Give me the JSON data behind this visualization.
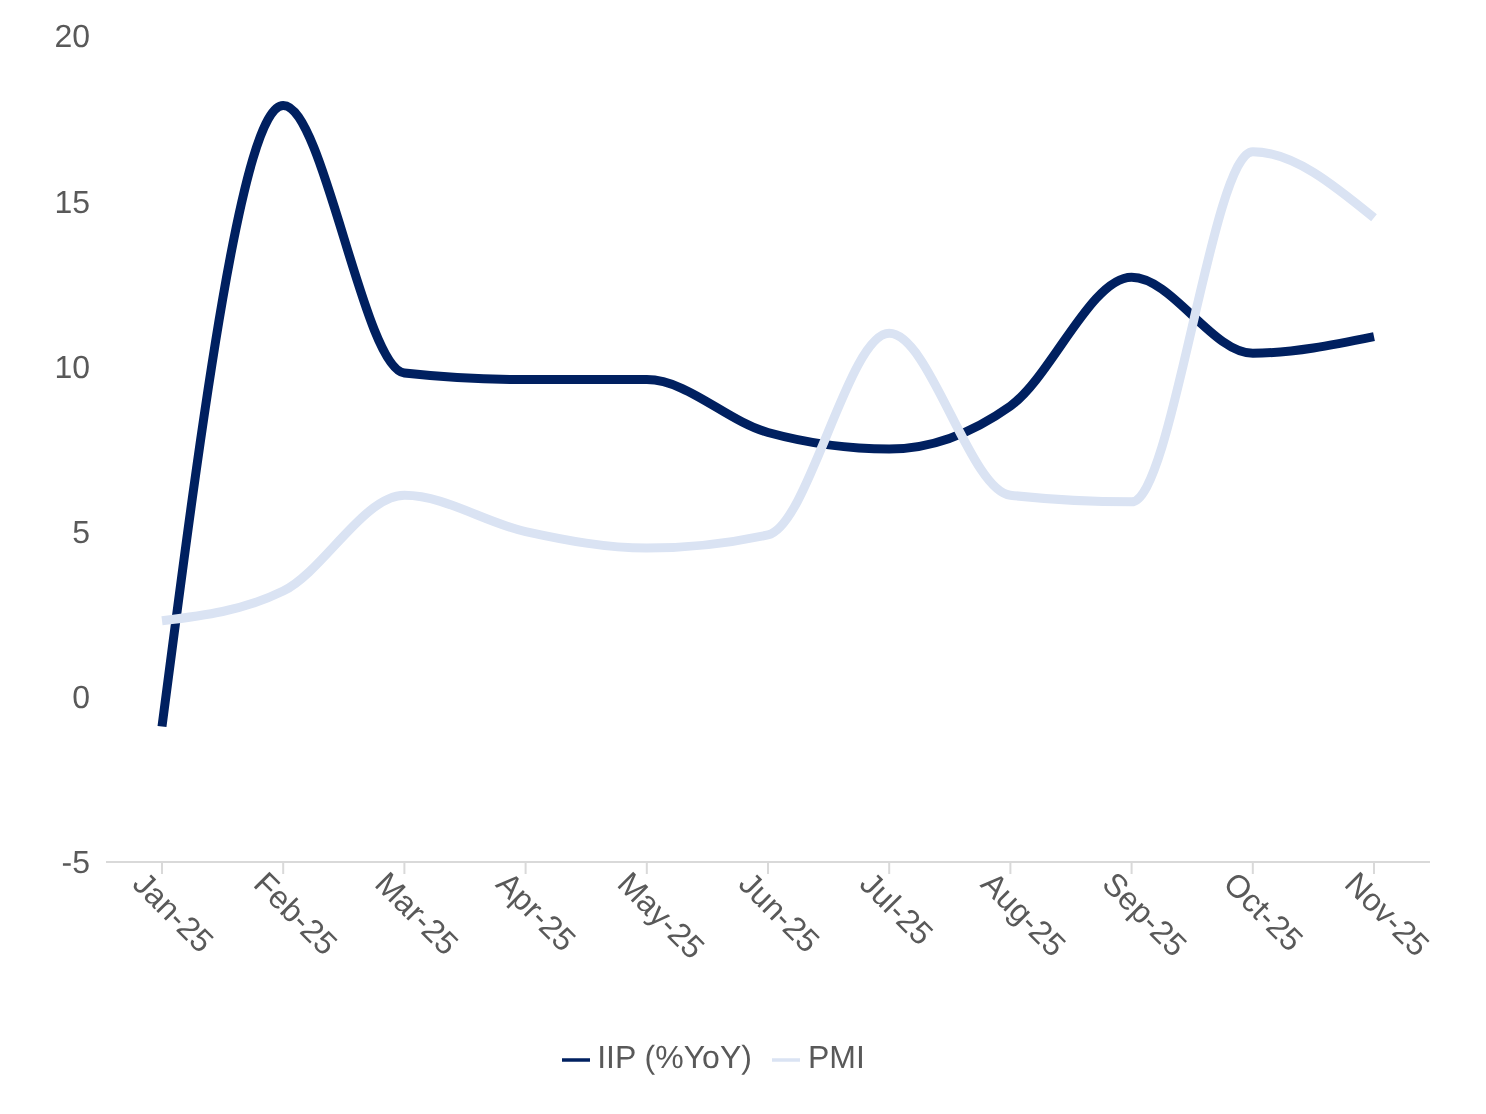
{
  "chart_data": {
    "type": "line",
    "categories": [
      "Jan-25",
      "Feb-25",
      "Mar-25",
      "Apr-25",
      "May-25",
      "Jun-25",
      "Jul-25",
      "Aug-25",
      "Sep-25",
      "Oct-25",
      "Nov-25"
    ],
    "series": [
      {
        "name": "IIP (%YoY)",
        "color": "#002060",
        "values": [
          -0.9,
          17.9,
          9.8,
          9.6,
          9.6,
          8.0,
          7.5,
          8.8,
          12.7,
          10.4,
          10.9
        ]
      },
      {
        "name": "PMI",
        "color": "#dae3f3",
        "values": [
          2.3,
          3.2,
          6.1,
          5.0,
          4.5,
          4.9,
          11.0,
          6.1,
          5.9,
          16.5,
          14.5
        ]
      }
    ],
    "ylim": [
      -5,
      20
    ],
    "yticks": [
      -5,
      0,
      5,
      10,
      15,
      20
    ],
    "grid": false,
    "legend": "bottom",
    "marker": "none",
    "line_style": "solid"
  }
}
